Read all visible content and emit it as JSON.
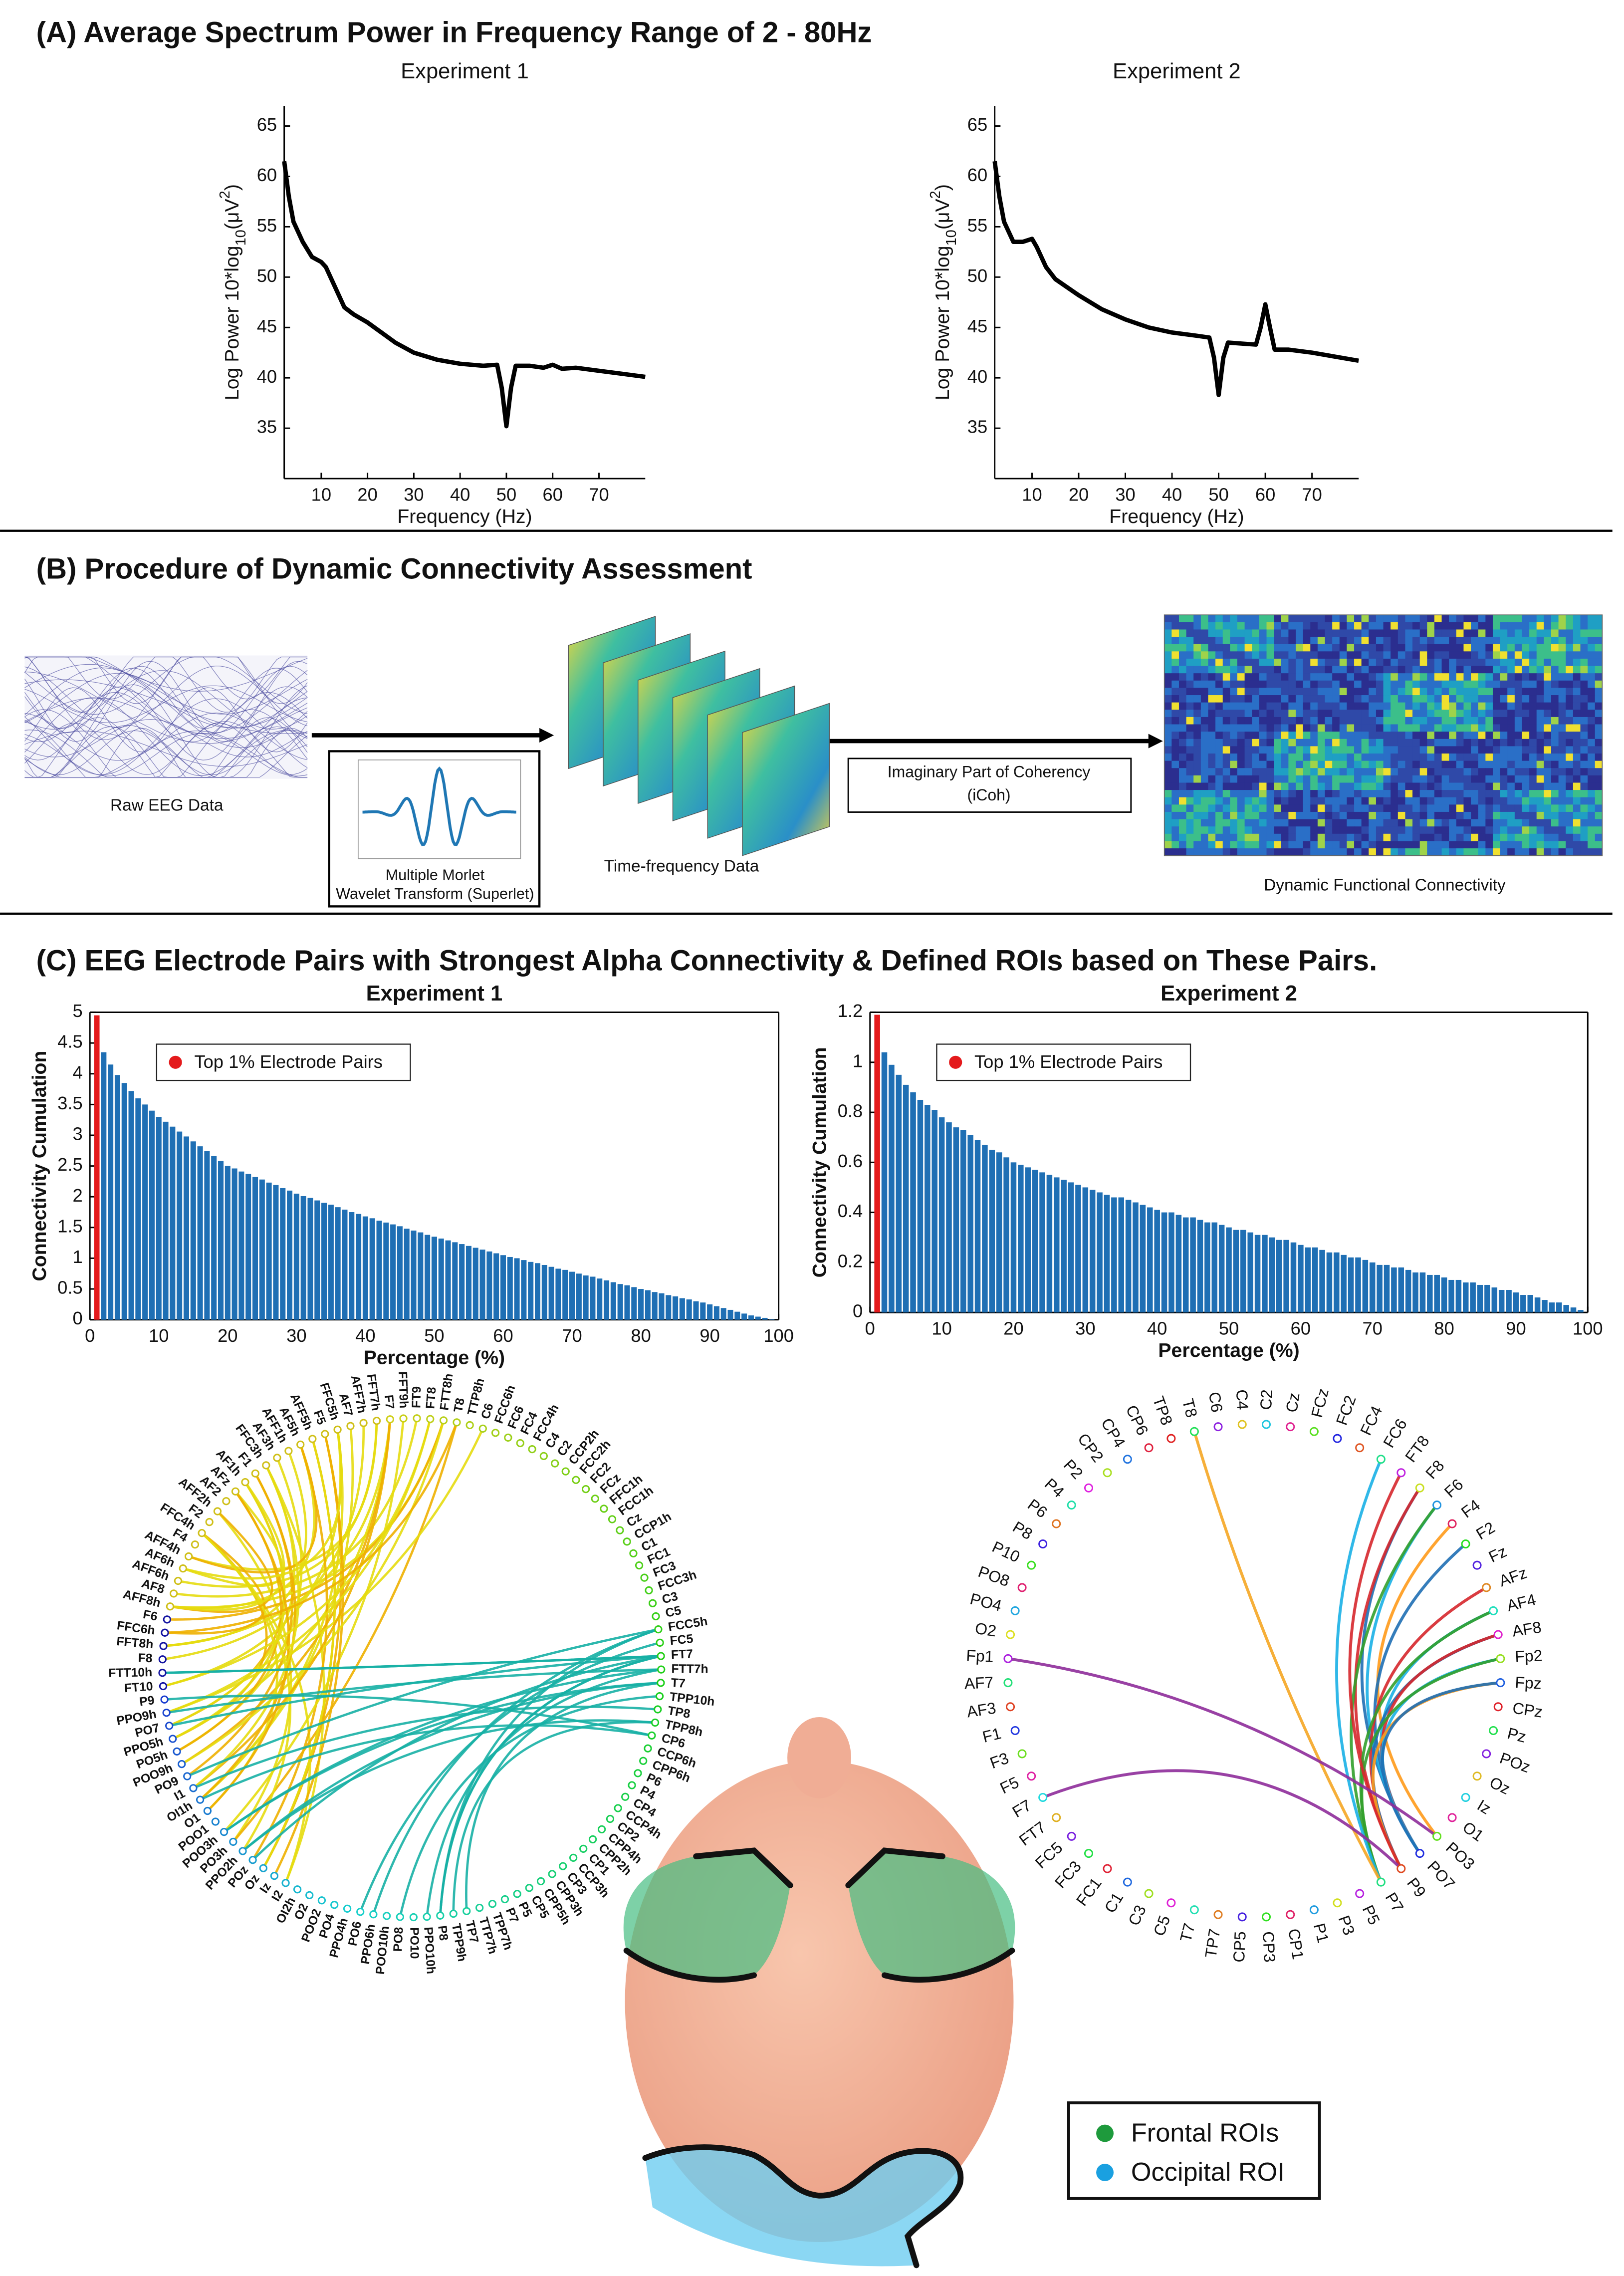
{
  "panels": {
    "a": {
      "title": "(A) Average Spectrum Power in Frequency Range of 2 - 80Hz"
    },
    "b": {
      "title": "(B) Procedure of Dynamic Connectivity Assessment",
      "raw": "Raw EEG Data",
      "wavelet": [
        "Multiple Morlet",
        "Wavelet Transform (Superlet)"
      ],
      "tf": "Time-frequency Data",
      "icoh": [
        "Imaginary Part of Coherency",
        "(iCoh)"
      ],
      "dfc": "Dynamic Functional Connectivity"
    },
    "c": {
      "title": "(C) EEG Electrode Pairs with Strongest Alpha Connectivity & Defined ROIs based on These Pairs.",
      "circles": [
        {
          "labels": [
            "F7",
            "FFT9h",
            "FT9",
            "FT8",
            "FTT8h",
            "T8",
            "TTP8h",
            "C6",
            "FCC6h",
            "FC6",
            "FC4",
            "FCC4h",
            "C4",
            "C2",
            "CCP2h",
            "FCC2h",
            "FC2",
            "FCz",
            "FFC1h",
            "FCC1h",
            "Cz",
            "CCP1h",
            "C1",
            "FC1",
            "FC3",
            "FCC3h",
            "C3",
            "C5",
            "FCC5h",
            "FC5",
            "FT7",
            "FTT7h",
            "T7",
            "TPP10h",
            "TP8",
            "TPP8h",
            "CP6",
            "CCP6h",
            "CPP6h",
            "P6",
            "P4",
            "CP4",
            "CCP4h",
            "CP2",
            "CPP4h",
            "CPP2h",
            "CP1",
            "CCP3h",
            "CP3",
            "CPP3h",
            "CPP5h",
            "CP5",
            "P5",
            "P7",
            "TPP7h",
            "TTP7h",
            "TP7",
            "TPP9h",
            "P8",
            "PPO10h",
            "PO10",
            "PO8",
            "POO10h",
            "PPO6h",
            "PO6",
            "PPO4h",
            "PO4",
            "POO2",
            "O2",
            "OI2h",
            "I2",
            "Iz",
            "Oz",
            "POz",
            "PPO2h",
            "PO3h",
            "POO3h",
            "POO1",
            "O1",
            "OI1h",
            "I1",
            "PO9",
            "POO9h",
            "PO5h",
            "PPO5h",
            "PO7",
            "PPO9h",
            "P9",
            "FT10",
            "FTT10h",
            "F8",
            "FFT8h",
            "FFC6h",
            "F6",
            "AFF8h",
            "AF8",
            "AFF6h",
            "AF6h",
            "AFF4h",
            "F4",
            "FFC4h",
            "F2",
            "AFF2h",
            "AF2",
            "AFz",
            "AF1h",
            "F1",
            "FFC3h",
            "AF3h",
            "AFF1h",
            "AF5h",
            "AFF5h",
            "F5",
            "FFC5h",
            "AF7",
            "AFF7h",
            "FFT7h"
          ]
        },
        {
          "labels": [
            "TP8",
            "T8",
            "C6",
            "C4",
            "C2",
            "Cz",
            "FCz",
            "FC2",
            "FC4",
            "FC6",
            "FT8",
            "F8",
            "F6",
            "F4",
            "F2",
            "Fz",
            "AFz",
            "AF4",
            "AF8",
            "Fp2",
            "Fpz",
            "CPz",
            "Pz",
            "POz",
            "Oz",
            "Iz",
            "O1",
            "PO3",
            "PO7",
            "P9",
            "P7",
            "P5",
            "P3",
            "P1",
            "CP1",
            "CP3",
            "CP5",
            "TP7",
            "T7",
            "C5",
            "C3",
            "C1",
            "FC1",
            "FC3",
            "FC5",
            "FT7",
            "F7",
            "F5",
            "F3",
            "F1",
            "AF3",
            "AF7",
            "Fp1",
            "O2",
            "PO4",
            "PO8",
            "P10",
            "P8",
            "P6",
            "P4",
            "P2",
            "CP2",
            "CP4",
            "CP6"
          ]
        }
      ],
      "roi_legend": [
        {
          "name": "Frontal ROIs",
          "color": "#1e9a3c"
        },
        {
          "name": "Occipital ROI",
          "color": "#1aa0e0"
        }
      ]
    }
  },
  "chart_data": [
    {
      "type": "line",
      "title": "Experiment 1",
      "xlabel": "Frequency (Hz)",
      "ylabel": {
        "prefix": "Log Power 10*log",
        "sub": "10",
        "mid": "(μV",
        "sup": "2",
        "suffix": ")"
      },
      "x": [
        2,
        3,
        4,
        6,
        8,
        10,
        11,
        13,
        15,
        17,
        20,
        23,
        26,
        30,
        35,
        40,
        45,
        48,
        49,
        50,
        51,
        52,
        55,
        58,
        60,
        62,
        65,
        70,
        75,
        80
      ],
      "series": [
        {
          "color": "#000000",
          "values": [
            61.5,
            58,
            55.5,
            53.5,
            52,
            51.5,
            51,
            49,
            47,
            46.3,
            45.5,
            44.5,
            43.5,
            42.5,
            41.8,
            41.4,
            41.2,
            41.3,
            39,
            35.2,
            39,
            41.2,
            41.2,
            41,
            41.3,
            40.9,
            41,
            40.7,
            40.4,
            40.1
          ]
        }
      ],
      "xlim": [
        2,
        80
      ],
      "ylim": [
        30,
        67
      ],
      "xticks": [
        10,
        20,
        30,
        40,
        50,
        60,
        70
      ],
      "yticks": [
        35,
        40,
        45,
        50,
        55,
        60,
        65
      ]
    },
    {
      "type": "line",
      "title": "Experiment 2",
      "xlabel": "Frequency (Hz)",
      "ylabel": {
        "prefix": "Log Power 10*log",
        "sub": "10",
        "mid": "(μV",
        "sup": "2",
        "suffix": ")"
      },
      "x": [
        2,
        3,
        4,
        6,
        8,
        10,
        11,
        13,
        15,
        20,
        25,
        30,
        35,
        40,
        45,
        48,
        49,
        50,
        51,
        52,
        55,
        58,
        59,
        60,
        61,
        62,
        65,
        70,
        75,
        80
      ],
      "series": [
        {
          "color": "#000000",
          "values": [
            61.5,
            58,
            55.5,
            53.5,
            53.5,
            53.8,
            53,
            51,
            49.8,
            48.2,
            46.8,
            45.8,
            45,
            44.5,
            44.2,
            44,
            42,
            38.3,
            42,
            43.5,
            43.4,
            43.3,
            45,
            47.3,
            45,
            42.8,
            42.8,
            42.5,
            42.1,
            41.7
          ]
        }
      ],
      "xlim": [
        2,
        80
      ],
      "ylim": [
        30,
        67
      ],
      "xticks": [
        10,
        20,
        30,
        40,
        50,
        60,
        70
      ],
      "yticks": [
        35,
        40,
        45,
        50,
        55,
        60,
        65
      ]
    },
    {
      "type": "bar",
      "title": "Experiment 1",
      "xlabel": "Percentage (%)",
      "ylabel": "Connectivity Cumulation",
      "legend": "upper left",
      "series": [
        {
          "name": "Top 1% Electrode Pairs",
          "color": "#e41a1c",
          "x": [
            1
          ],
          "values": [
            4.95
          ]
        },
        {
          "color": "#1f6fb4",
          "x": [
            2,
            3,
            4,
            5,
            6,
            7,
            8,
            9,
            10,
            11,
            12,
            13,
            14,
            15,
            16,
            17,
            18,
            19,
            20,
            21,
            22,
            23,
            24,
            25,
            26,
            27,
            28,
            29,
            30,
            31,
            32,
            33,
            34,
            35,
            36,
            37,
            38,
            39,
            40,
            41,
            42,
            43,
            44,
            45,
            46,
            47,
            48,
            49,
            50,
            51,
            52,
            53,
            54,
            55,
            56,
            57,
            58,
            59,
            60,
            61,
            62,
            63,
            64,
            65,
            66,
            67,
            68,
            69,
            70,
            71,
            72,
            73,
            74,
            75,
            76,
            77,
            78,
            79,
            80,
            81,
            82,
            83,
            84,
            85,
            86,
            87,
            88,
            89,
            90,
            91,
            92,
            93,
            94,
            95,
            96,
            97,
            98,
            99,
            100
          ],
          "values": [
            4.35,
            4.15,
            3.98,
            3.85,
            3.72,
            3.6,
            3.5,
            3.4,
            3.3,
            3.22,
            3.14,
            3.06,
            2.98,
            2.9,
            2.82,
            2.74,
            2.66,
            2.58,
            2.5,
            2.46,
            2.41,
            2.37,
            2.32,
            2.28,
            2.23,
            2.19,
            2.14,
            2.1,
            2.05,
            2.01,
            1.98,
            1.94,
            1.9,
            1.87,
            1.83,
            1.79,
            1.75,
            1.72,
            1.68,
            1.65,
            1.61,
            1.58,
            1.55,
            1.52,
            1.48,
            1.45,
            1.42,
            1.38,
            1.35,
            1.32,
            1.29,
            1.26,
            1.23,
            1.2,
            1.17,
            1.14,
            1.11,
            1.08,
            1.05,
            1.02,
            1,
            0.97,
            0.94,
            0.92,
            0.89,
            0.86,
            0.83,
            0.81,
            0.78,
            0.75,
            0.72,
            0.7,
            0.67,
            0.64,
            0.61,
            0.58,
            0.56,
            0.53,
            0.5,
            0.48,
            0.45,
            0.43,
            0.4,
            0.38,
            0.35,
            0.33,
            0.3,
            0.28,
            0.25,
            0.22,
            0.19,
            0.16,
            0.13,
            0.1,
            0.07,
            0.05,
            0.03,
            0.01,
            0
          ]
        }
      ],
      "xlim": [
        0,
        100
      ],
      "ylim": [
        0,
        5
      ],
      "xticks": [
        0,
        10,
        20,
        30,
        40,
        50,
        60,
        70,
        80,
        90,
        100
      ],
      "yticks": [
        0,
        0.5,
        1,
        1.5,
        2,
        2.5,
        3,
        3.5,
        4,
        4.5,
        5
      ]
    },
    {
      "type": "bar",
      "title": "Experiment 2",
      "xlabel": "Percentage (%)",
      "ylabel": "Connectivity Cumulation",
      "legend": "upper left",
      "series": [
        {
          "name": "Top 1% Electrode Pairs",
          "color": "#e41a1c",
          "x": [
            1
          ],
          "values": [
            1.19
          ]
        },
        {
          "color": "#1f6fb4",
          "x": [
            2,
            3,
            4,
            5,
            6,
            7,
            8,
            9,
            10,
            11,
            12,
            13,
            14,
            15,
            16,
            17,
            18,
            19,
            20,
            21,
            22,
            23,
            24,
            25,
            26,
            27,
            28,
            29,
            30,
            31,
            32,
            33,
            34,
            35,
            36,
            37,
            38,
            39,
            40,
            41,
            42,
            43,
            44,
            45,
            46,
            47,
            48,
            49,
            50,
            51,
            52,
            53,
            54,
            55,
            56,
            57,
            58,
            59,
            60,
            61,
            62,
            63,
            64,
            65,
            66,
            67,
            68,
            69,
            70,
            71,
            72,
            73,
            74,
            75,
            76,
            77,
            78,
            79,
            80,
            81,
            82,
            83,
            84,
            85,
            86,
            87,
            88,
            89,
            90,
            91,
            92,
            93,
            94,
            95,
            96,
            97,
            98,
            99,
            100
          ],
          "values": [
            1.04,
            0.99,
            0.95,
            0.91,
            0.88,
            0.85,
            0.83,
            0.81,
            0.78,
            0.76,
            0.74,
            0.73,
            0.71,
            0.69,
            0.67,
            0.65,
            0.64,
            0.62,
            0.6,
            0.59,
            0.58,
            0.57,
            0.56,
            0.55,
            0.54,
            0.53,
            0.52,
            0.51,
            0.5,
            0.49,
            0.48,
            0.47,
            0.46,
            0.46,
            0.45,
            0.44,
            0.43,
            0.42,
            0.41,
            0.4,
            0.4,
            0.39,
            0.38,
            0.38,
            0.37,
            0.36,
            0.36,
            0.35,
            0.34,
            0.33,
            0.33,
            0.32,
            0.31,
            0.31,
            0.3,
            0.29,
            0.29,
            0.28,
            0.27,
            0.26,
            0.26,
            0.25,
            0.24,
            0.24,
            0.23,
            0.22,
            0.22,
            0.21,
            0.2,
            0.19,
            0.19,
            0.18,
            0.18,
            0.17,
            0.16,
            0.16,
            0.15,
            0.15,
            0.14,
            0.13,
            0.13,
            0.12,
            0.12,
            0.11,
            0.11,
            0.1,
            0.09,
            0.09,
            0.08,
            0.07,
            0.07,
            0.06,
            0.05,
            0.04,
            0.04,
            0.03,
            0.02,
            0.01,
            0
          ]
        }
      ],
      "xlim": [
        0,
        100
      ],
      "ylim": [
        0,
        1.2
      ],
      "xticks": [
        0,
        10,
        20,
        30,
        40,
        50,
        60,
        70,
        80,
        90,
        100
      ],
      "yticks": [
        0,
        0.2,
        0.4,
        0.6,
        0.8,
        1,
        1.2
      ]
    }
  ]
}
